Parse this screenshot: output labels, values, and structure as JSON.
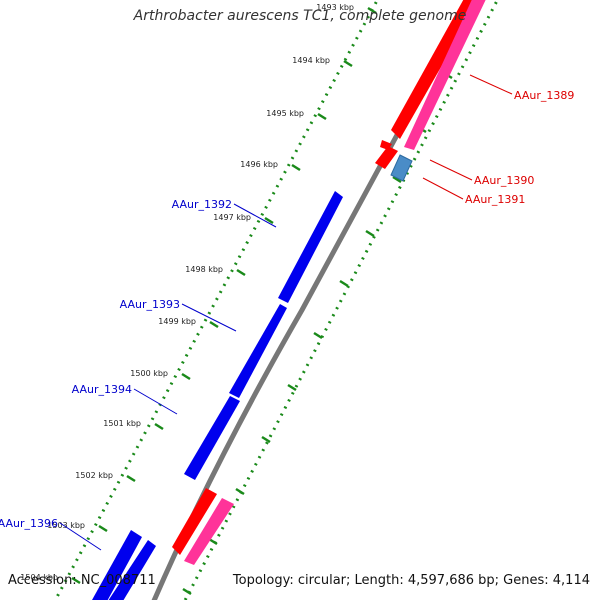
{
  "title": "Arthrobacter aurescens TC1, complete genome",
  "footer": {
    "accession": "Accession: NC_008711",
    "summary": "Topology: circular; Length: 4,597,686 bp; Genes: 4,114"
  },
  "colors": {
    "forward_gene": "#ff0000",
    "forward_gene_pair": "#ff3399",
    "reverse_gene": "#0000ee",
    "selected_gene": "#4a8cc7",
    "backbone": "#777777",
    "tick": "#1a8a1a",
    "reverse_label": "#0000cc",
    "forward_label": "#dd0000"
  },
  "ticks": [
    {
      "label": "1493 kbp"
    },
    {
      "label": "1494 kbp"
    },
    {
      "label": "1495 kbp"
    },
    {
      "label": "1496 kbp"
    },
    {
      "label": "1497 kbp"
    },
    {
      "label": "1498 kbp"
    },
    {
      "label": "1499 kbp"
    },
    {
      "label": "1500 kbp"
    },
    {
      "label": "1501 kbp"
    },
    {
      "label": "1502 kbp"
    },
    {
      "label": "1503 kbp"
    },
    {
      "label": "1504 kbp"
    }
  ],
  "genes": [
    {
      "name": "AAur_1389",
      "strand": "forward"
    },
    {
      "name": "AAur_1390",
      "strand": "forward"
    },
    {
      "name": "AAur_1391",
      "strand": "forward"
    },
    {
      "name": "AAur_1392",
      "strand": "reverse"
    },
    {
      "name": "AAur_1393",
      "strand": "reverse"
    },
    {
      "name": "AAur_1394",
      "strand": "reverse"
    },
    {
      "name": "AAur_1396",
      "strand": "reverse"
    }
  ]
}
